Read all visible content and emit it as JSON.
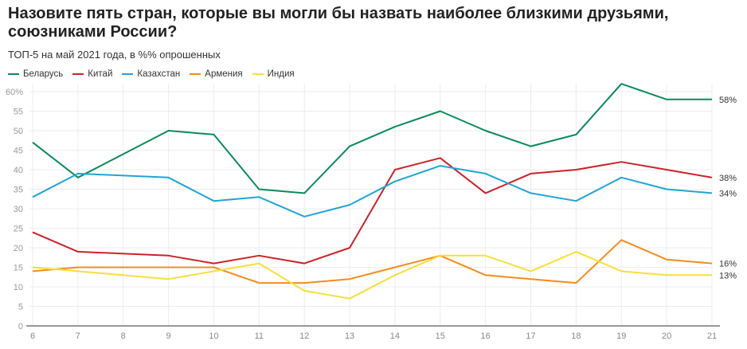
{
  "title": "Назовите пять стран, которые вы могли бы назвать наиболее близкими друзьями, союзниками России?",
  "subtitle": "ТОП-5 на май 2021 года, в %% опрошенных",
  "chart_data": {
    "type": "line",
    "title": "Назовите пять стран, которые вы могли бы назвать наиболее близкими друзьями, союзниками России?",
    "subtitle": "ТОП-5 на май 2021 года, в %% опрошенных",
    "xlabel": "",
    "ylabel": "",
    "x": [
      "6",
      "7",
      "8",
      "9",
      "10",
      "11",
      "12",
      "13",
      "14",
      "15",
      "16",
      "17",
      "18",
      "19",
      "20",
      "21"
    ],
    "ylim": [
      0,
      60
    ],
    "yticks": [
      "0",
      "5",
      "10",
      "15",
      "20",
      "25",
      "30",
      "35",
      "40",
      "45",
      "50",
      "55",
      "60%"
    ],
    "grid": true,
    "legend": "top-left",
    "series": [
      {
        "name": "Беларусь",
        "color": "#0b8a5a",
        "end_label": "58%",
        "values": [
          47,
          38,
          null,
          50,
          49,
          35,
          34,
          46,
          51,
          55,
          50,
          46,
          49,
          62,
          58,
          58
        ]
      },
      {
        "name": "Китай",
        "color": "#cc2229",
        "end_label": "38%",
        "values": [
          24,
          19,
          null,
          18,
          16,
          18,
          16,
          20,
          40,
          43,
          34,
          39,
          40,
          42,
          40,
          38
        ]
      },
      {
        "name": "Казахстан",
        "color": "#22a4d4",
        "end_label": "34%",
        "values": [
          33,
          39,
          null,
          38,
          32,
          33,
          28,
          31,
          37,
          41,
          39,
          34,
          32,
          38,
          35,
          34
        ]
      },
      {
        "name": "Армения",
        "color": "#f78b1c",
        "end_label": "16%",
        "values": [
          14,
          15,
          null,
          15,
          15,
          11,
          11,
          12,
          15,
          18,
          13,
          12,
          11,
          22,
          17,
          16
        ]
      },
      {
        "name": "Индия",
        "color": "#f7df3a",
        "end_label": "13%",
        "values": [
          15,
          14,
          null,
          12,
          14,
          16,
          9,
          7,
          13,
          18,
          18,
          14,
          19,
          14,
          13,
          13
        ]
      }
    ]
  }
}
